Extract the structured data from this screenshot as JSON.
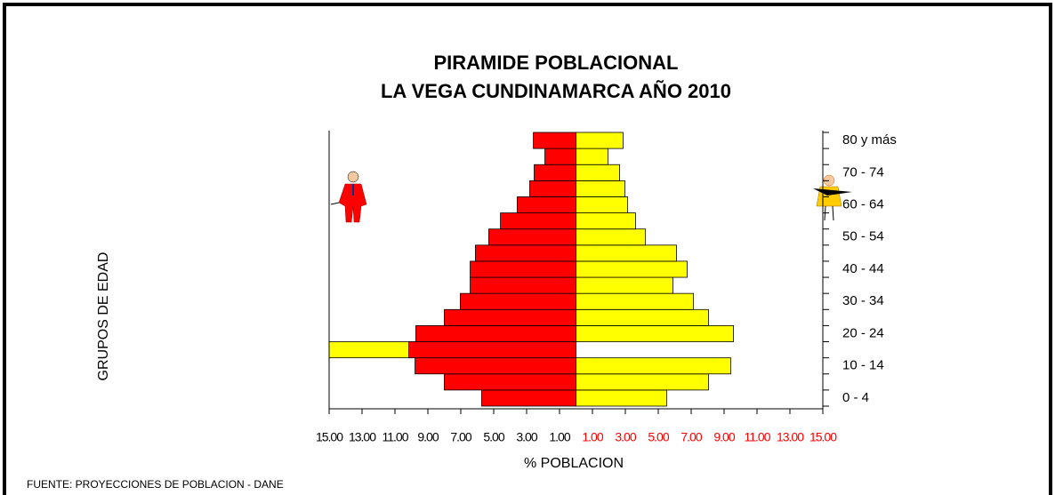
{
  "chart_data": {
    "type": "pyramid",
    "title": [
      "PIRAMIDE POBLACIONAL",
      "LA VEGA CUNDINAMARCA AÑO  2010"
    ],
    "x_label": "% POBLACION",
    "y_label": "GRUPOS DE EDAD",
    "source": "FUENTE: PROYECCIONES DE POBLACION  -  DANE",
    "categories": [
      "0 - 4",
      null,
      "10 - 14",
      null,
      "20 - 24",
      null,
      "30 - 34",
      null,
      "40 - 44",
      null,
      "50 - 54",
      null,
      "60 - 64",
      null,
      "70 - 74",
      null,
      "80 y más"
    ],
    "series": [
      {
        "color": "#ffff00",
        "values": [
          5.51,
          8.05,
          9.41,
          -15,
          9.57,
          8.05,
          7.14,
          5.89,
          6.76,
          6.11,
          4.22,
          3.62,
          3.14,
          2.97,
          2.65,
          1.95,
          2.86
        ]
      },
      {
        "color": "#ff0000",
        "values": [
          -5.73,
          -8.0,
          -9.78,
          -10.16,
          -9.73,
          -8.0,
          -7.03,
          -6.43,
          -6.43,
          -6.11,
          -5.3,
          -4.59,
          -3.57,
          -2.81,
          -2.54,
          -1.89,
          -2.59
        ]
      }
    ],
    "xlim": [
      -15,
      15
    ],
    "xticks": [
      {
        "value": -15,
        "label": "15.00"
      },
      {
        "value": -13,
        "label": "13.00"
      },
      {
        "value": -11,
        "label": "11.00"
      },
      {
        "value": -9,
        "label": "9.00"
      },
      {
        "value": -7,
        "label": "7.00"
      },
      {
        "value": -5,
        "label": "5.00"
      },
      {
        "value": -3,
        "label": "3.00"
      },
      {
        "value": -1,
        "label": "1.00"
      },
      {
        "value": 1,
        "label": "1.00"
      },
      {
        "value": 3,
        "label": "3.00"
      },
      {
        "value": 5,
        "label": "5.00"
      },
      {
        "value": 7,
        "label": "7.00"
      },
      {
        "value": 9,
        "label": "9.00"
      },
      {
        "value": 11,
        "label": "11.00"
      },
      {
        "value": 13,
        "label": "13.00"
      },
      {
        "value": 15,
        "label": "15.00"
      }
    ]
  }
}
